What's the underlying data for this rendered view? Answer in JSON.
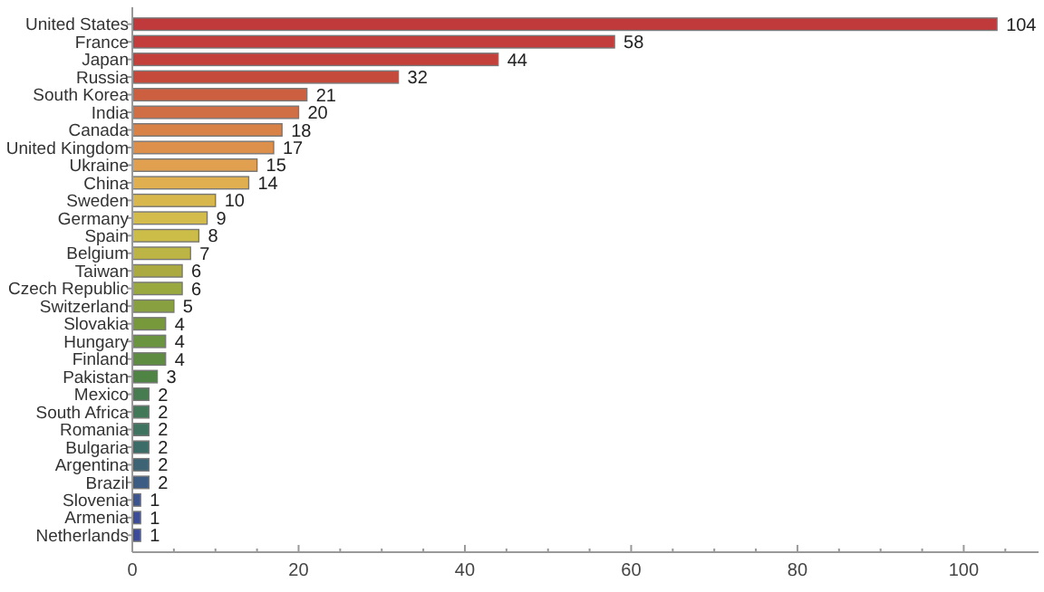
{
  "chart_data": {
    "type": "bar",
    "orientation": "horizontal",
    "data_labels": true,
    "grid": false,
    "categories": [
      "United States",
      "France",
      "Japan",
      "Russia",
      "South Korea",
      "India",
      "Canada",
      "United Kingdom",
      "Ukraine",
      "China",
      "Sweden",
      "Germany",
      "Spain",
      "Belgium",
      "Taiwan",
      "Czech Republic",
      "Switzerland",
      "Slovakia",
      "Hungary",
      "Finland",
      "Pakistan",
      "Mexico",
      "South Africa",
      "Romania",
      "Bulgaria",
      "Argentina",
      "Brazil",
      "Slovenia",
      "Armenia",
      "Netherlands"
    ],
    "values": [
      104,
      58,
      44,
      32,
      21,
      20,
      18,
      17,
      15,
      14,
      10,
      9,
      8,
      7,
      6,
      6,
      5,
      4,
      4,
      4,
      3,
      2,
      2,
      2,
      2,
      2,
      2,
      1,
      1,
      1
    ],
    "colors": [
      "#c0393b",
      "#c23d3b",
      "#c4403a",
      "#c64a3c",
      "#cc5f40",
      "#d06e45",
      "#d88248",
      "#dc904c",
      "#e0a050",
      "#e0b050",
      "#d8b84c",
      "#d4bc4c",
      "#ccbc48",
      "#bcb444",
      "#aaaa40",
      "#9aa840",
      "#88a040",
      "#78983c",
      "#6a9440",
      "#5e8c40",
      "#508444",
      "#467c50",
      "#407858",
      "#3e7460",
      "#3c6c68",
      "#3c6474",
      "#3c5c84",
      "#3c5490",
      "#3c4c98",
      "#3c4a9c"
    ],
    "xlim": [
      0,
      109
    ],
    "xticks": [
      0,
      {
        "value": 5,
        "label": null
      },
      {
        "value": 10,
        "label": null
      },
      {
        "value": 15,
        "label": null
      },
      20,
      {
        "value": 25,
        "label": null
      },
      {
        "value": 30,
        "label": null
      },
      {
        "value": 35,
        "label": null
      },
      40,
      {
        "value": 45,
        "label": null
      },
      {
        "value": 50,
        "label": null
      },
      {
        "value": 55,
        "label": null
      },
      60,
      {
        "value": 65,
        "label": null
      },
      {
        "value": 70,
        "label": null
      },
      {
        "value": 75,
        "label": null
      },
      80,
      {
        "value": 85,
        "label": null
      },
      {
        "value": 90,
        "label": null
      },
      {
        "value": 95,
        "label": null
      },
      100,
      {
        "value": 105,
        "label": null
      }
    ]
  }
}
